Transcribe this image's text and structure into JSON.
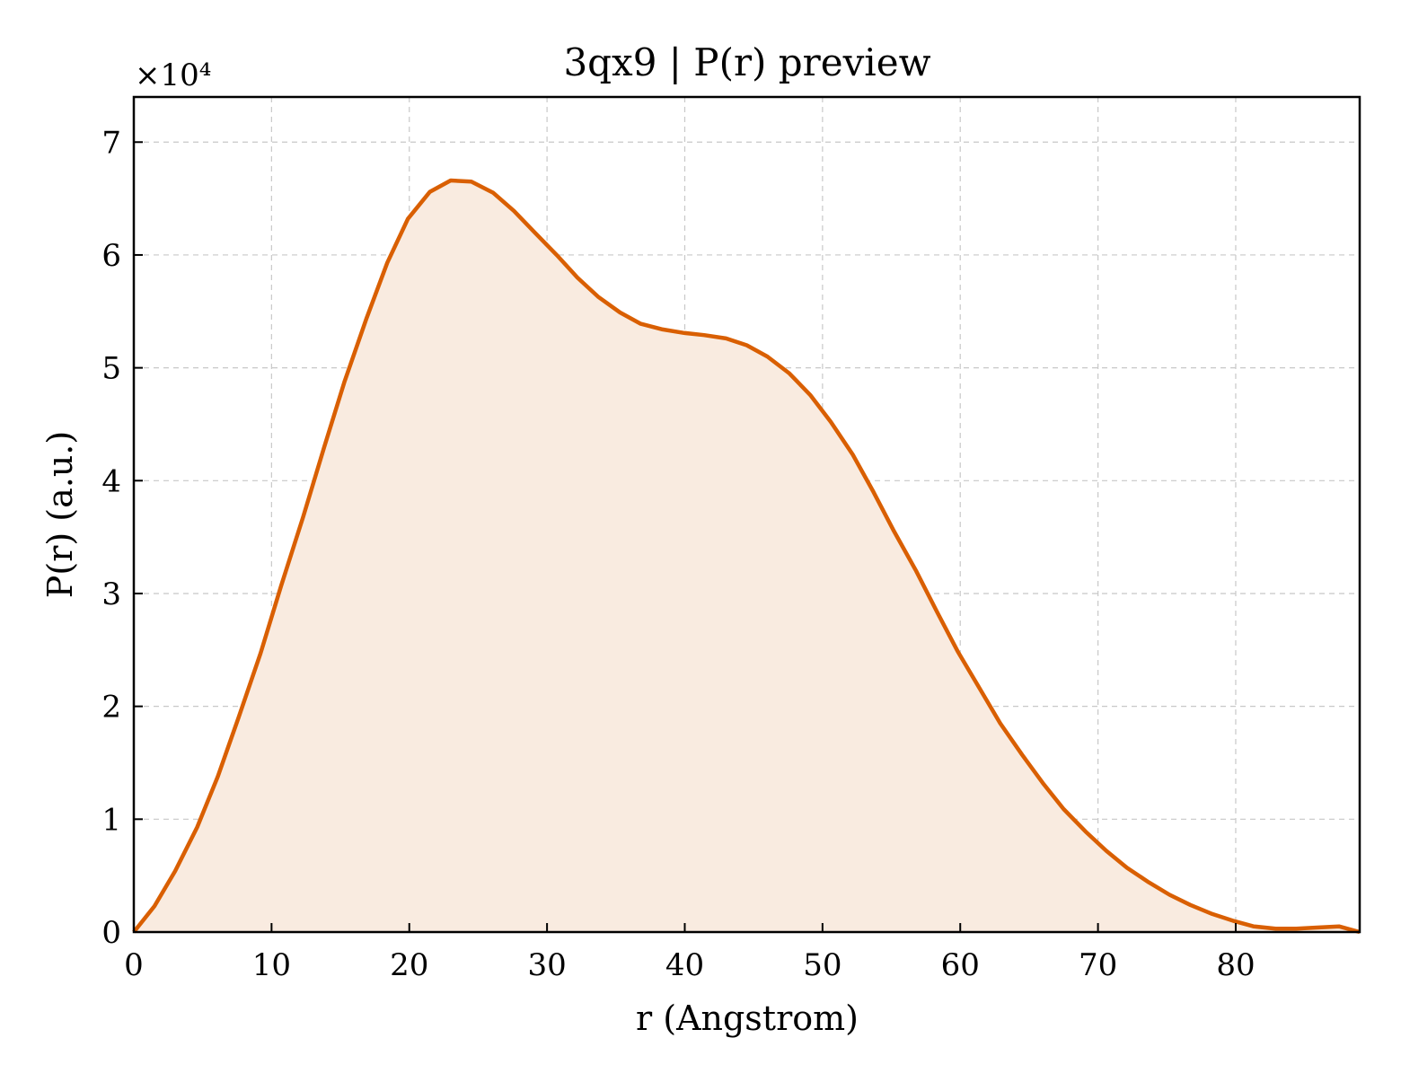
{
  "chart_data": {
    "type": "area",
    "title": "3qx9 | P(r) preview",
    "xlabel": "r (Angstrom)",
    "ylabel": "P(r) (a.u.)",
    "y_multiplier_label": "×10⁴",
    "xlim": [
      0,
      89
    ],
    "ylim": [
      0,
      7.4
    ],
    "xticks": [
      0,
      10,
      20,
      30,
      40,
      50,
      60,
      70,
      80
    ],
    "yticks": [
      0,
      1,
      2,
      3,
      4,
      5,
      6,
      7
    ],
    "grid": true,
    "line_color": "#d95f02",
    "fill_color": "#f9ebe0",
    "series": [
      {
        "x": [
          0,
          1.5,
          3,
          4.6,
          6.1,
          7.6,
          9.2,
          10.7,
          12.3,
          13.8,
          15.3,
          16.9,
          18.4,
          19.9,
          21.5,
          23,
          24.5,
          26.1,
          27.6,
          29.1,
          30.7,
          32.2,
          33.7,
          35.3,
          36.8,
          38.4,
          39.9,
          41.4,
          43,
          44.5,
          46,
          47.6,
          49.1,
          50.6,
          52.2,
          53.7,
          55.2,
          56.8,
          58.3,
          59.8,
          61.4,
          62.9,
          64.5,
          66,
          67.5,
          69.1,
          70.6,
          72.1,
          73.7,
          75.2,
          76.7,
          78.3,
          79.8,
          81.3,
          82.9,
          84.4,
          85.9,
          87.5,
          89
        ],
        "y": [
          0,
          0.23,
          0.54,
          0.93,
          1.38,
          1.9,
          2.47,
          3.07,
          3.68,
          4.29,
          4.88,
          5.44,
          5.93,
          6.32,
          6.56,
          6.66,
          6.65,
          6.55,
          6.39,
          6.2,
          6,
          5.8,
          5.63,
          5.49,
          5.39,
          5.34,
          5.31,
          5.29,
          5.26,
          5.2,
          5.1,
          4.95,
          4.76,
          4.52,
          4.23,
          3.9,
          3.55,
          3.2,
          2.84,
          2.49,
          2.16,
          1.85,
          1.57,
          1.32,
          1.09,
          0.89,
          0.72,
          0.57,
          0.44,
          0.33,
          0.24,
          0.16,
          0.1,
          0.05,
          0.03,
          0.03,
          0.04,
          0.05,
          0
        ]
      }
    ]
  }
}
